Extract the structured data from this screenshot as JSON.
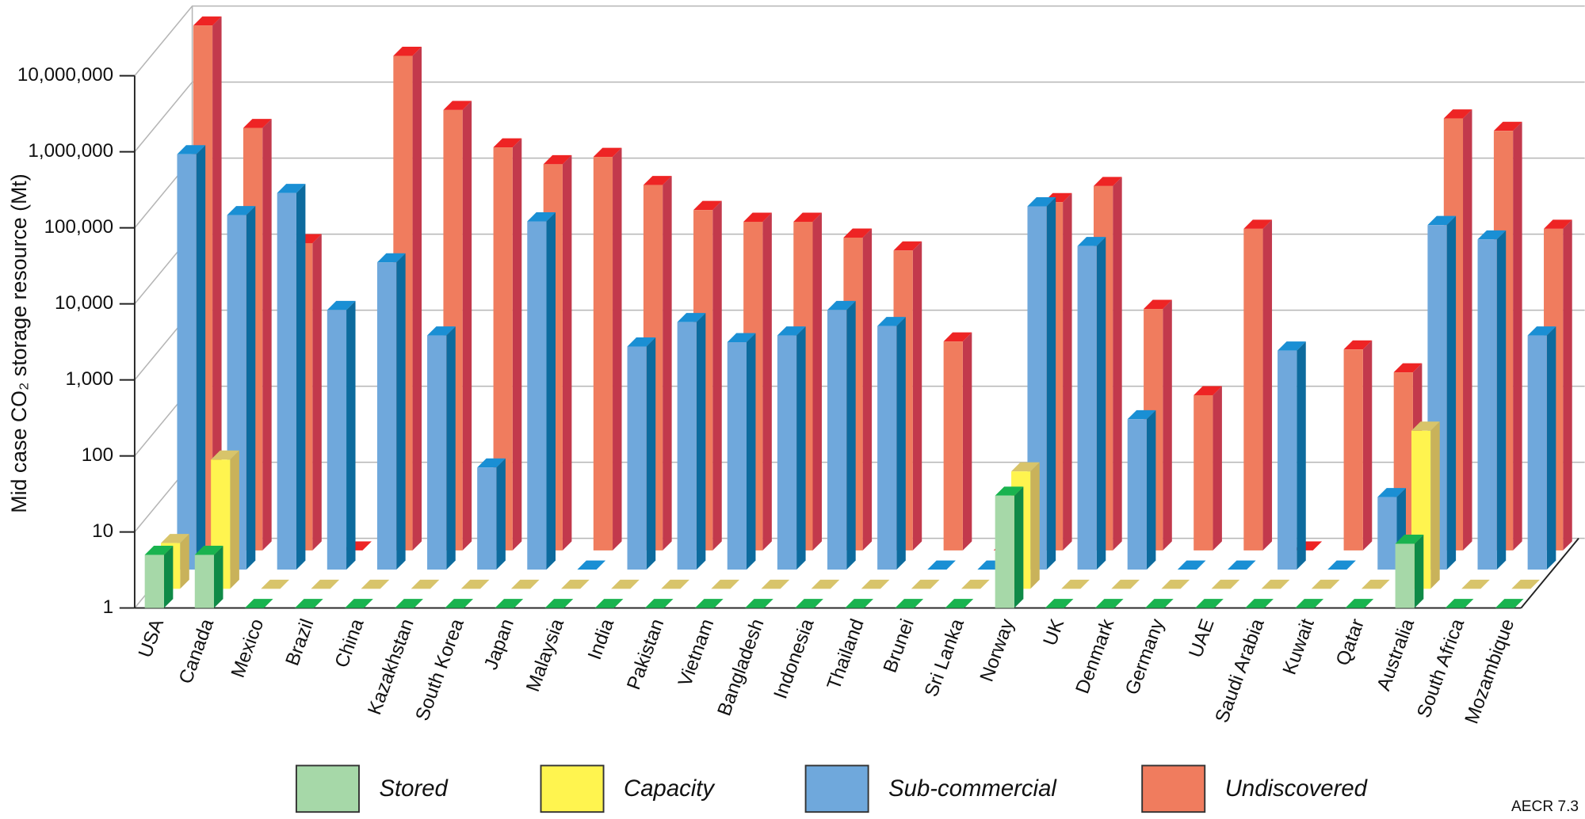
{
  "chart_data": {
    "type": "bar3d",
    "y_label": "Mid case CO₂ storage resource (Mt)",
    "source_note": "AECR 7.3",
    "log_scale": true,
    "grid": true,
    "legend_position": "bottom",
    "ylim": [
      1,
      10000000
    ],
    "yticks": [
      1,
      10,
      100,
      {
        "value": 1000,
        "label": "1,000"
      },
      {
        "value": 10000,
        "label": "10,000"
      },
      {
        "value": 100000,
        "label": "100,000"
      },
      {
        "value": 1000000,
        "label": "1,000,000"
      },
      {
        "value": 10000000,
        "label": "10,000,000"
      }
    ],
    "categories": [
      "USA",
      "Canada",
      "Mexico",
      "Brazil",
      "China",
      "Kazakhstan",
      "South Korea",
      "Japan",
      "Malaysia",
      "India",
      "Pakistan",
      "Vietnam",
      "Bangladesh",
      "Indonesia",
      "Thailand",
      "Brunei",
      "Sri Lanka",
      "Norway",
      "UK",
      "Denmark",
      "Germany",
      "UAE",
      "Saudi Arabia",
      "Kuwait",
      "Qatar",
      "Australia",
      "South Africa",
      "Mozambique"
    ],
    "series": [
      {
        "name": "Stored",
        "color": "#a6d8a8",
        "values": [
          5,
          5,
          null,
          null,
          null,
          null,
          null,
          null,
          null,
          null,
          null,
          null,
          null,
          null,
          null,
          null,
          null,
          30,
          null,
          null,
          null,
          null,
          null,
          null,
          null,
          7,
          null,
          null
        ]
      },
      {
        "name": "Capacity",
        "color": "#fff44f",
        "values": [
          4,
          50,
          null,
          null,
          null,
          null,
          null,
          null,
          null,
          null,
          null,
          null,
          null,
          null,
          null,
          null,
          null,
          35,
          null,
          null,
          null,
          null,
          null,
          null,
          null,
          120,
          null,
          null
        ]
      },
      {
        "name": "Sub-commercial",
        "color": "#6fa8dc",
        "values": [
          290000,
          46000,
          90000,
          2600,
          11000,
          1200,
          22,
          38000,
          null,
          860,
          1800,
          980,
          1200,
          2600,
          1600,
          null,
          null,
          60000,
          18000,
          95,
          null,
          null,
          760,
          null,
          9,
          34000,
          22000,
          1200
        ]
      },
      {
        "name": "Undiscovered",
        "color": "#f07c5e",
        "values": [
          8000000,
          360000,
          11000,
          null,
          3200000,
          620000,
          200000,
          120000,
          150000,
          64000,
          30000,
          21000,
          21000,
          13000,
          8800,
          560,
          null,
          38000,
          62000,
          1500,
          110,
          17000,
          null,
          440,
          220,
          480000,
          330000,
          17000
        ]
      }
    ]
  }
}
